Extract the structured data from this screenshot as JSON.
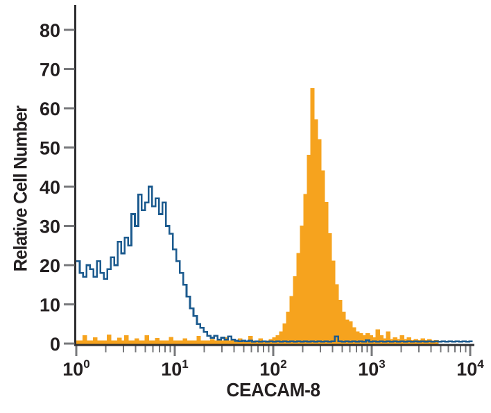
{
  "figure": {
    "background": "#ffffff"
  },
  "chart_data": {
    "type": "histogram",
    "subtype": "flow-cytometry-overlay-step-histogram",
    "title": "",
    "xlabel": "CEACAM-8",
    "ylabel": "Relative Cell Number",
    "x_scale": "log10",
    "xlim_exponents": [
      0,
      4
    ],
    "x_tick_exponents": [
      0,
      1,
      2,
      3,
      4
    ],
    "x_tick_base": "10",
    "x_minor_tick_multiples": [
      2,
      3,
      4,
      5,
      6,
      7,
      8,
      9
    ],
    "y_ticks": [
      0,
      10,
      20,
      30,
      40,
      50,
      60,
      70,
      80
    ],
    "ylim": [
      0,
      86
    ],
    "grid": false,
    "legend": "none",
    "axis_color": "#2e2e30",
    "tick_color": "#77787b",
    "label_color": "#231f20",
    "bins": {
      "log_start": 0,
      "log_step": 0.035,
      "count": 115
    },
    "series": [
      {
        "id": "filled-histogram-stained",
        "style": "filled",
        "color": "#F6A31E",
        "peak_value": 65,
        "peak_x_approx": 250,
        "values": [
          0.7,
          0.7,
          2,
          0.7,
          0.7,
          1.5,
          0.7,
          0.7,
          0.7,
          2.2,
          0.7,
          0.7,
          1.4,
          0.7,
          2,
          0.7,
          0.7,
          1.2,
          0.7,
          0.7,
          2,
          0.7,
          0.7,
          1.3,
          0.7,
          0.7,
          0.7,
          1.6,
          0.7,
          0.7,
          0.7,
          1.2,
          0.7,
          0.7,
          0.7,
          1.8,
          0.7,
          0.7,
          0.7,
          1,
          0.7,
          0.7,
          0.7,
          1.5,
          0.7,
          0.7,
          0.7,
          1.2,
          0.7,
          0.7,
          1.8,
          0.7,
          0.7,
          1.2,
          0.7,
          0.7,
          1,
          1.5,
          2,
          3,
          5,
          8,
          12,
          17,
          23,
          30,
          38,
          48,
          65,
          57,
          52,
          44,
          36,
          28,
          21,
          15,
          11,
          8,
          6,
          5.5,
          4,
          3,
          2.5,
          2,
          2.5,
          2,
          1.5,
          3.5,
          2,
          1.2,
          3,
          1,
          1.5,
          1,
          2,
          1,
          1.5,
          0.8,
          1,
          0.8,
          1.2,
          0.8,
          1,
          0.7,
          0.8,
          0,
          0,
          0,
          0,
          0,
          0,
          0,
          0,
          0,
          0
        ]
      },
      {
        "id": "open-histogram-control",
        "style": "outline",
        "color": "#1B5A8E",
        "peak_value": 40,
        "peak_x_approx": 5,
        "values": [
          21,
          18,
          17,
          20,
          19,
          17,
          21,
          18,
          16.5,
          19,
          22,
          20,
          26,
          23,
          27,
          25,
          33,
          30,
          38,
          34,
          36,
          40,
          35,
          37,
          33,
          36,
          30,
          28,
          24,
          21,
          18,
          15,
          12,
          9,
          7,
          5,
          4,
          3,
          2,
          1.5,
          2,
          1,
          1.5,
          1,
          1.8,
          1,
          0.7,
          0.6,
          0.7,
          0.6,
          0.7,
          0.5,
          0.6,
          0.5,
          0.6,
          0.5,
          0.6,
          0.5,
          0.6,
          0.5,
          0.6,
          0.5,
          0.6,
          0.5,
          0.6,
          0.5,
          0.6,
          0.5,
          0.6,
          0.5,
          0.6,
          0.5,
          0.6,
          0.5,
          0.6,
          1.8,
          0.6,
          0.5,
          0.6,
          0.5,
          0.6,
          0.5,
          0.6,
          0.5,
          0.8,
          0.5,
          0.6,
          0.5,
          0.6,
          0.5,
          0.6,
          0.5,
          0.6,
          0.5,
          0.6,
          0.5,
          0.6,
          0.5,
          0.6,
          0.5,
          0.6,
          0.5,
          0.6,
          0.5,
          0.6,
          0.5,
          0.6,
          0.5,
          0.6,
          0.5,
          0.6,
          0.5,
          0.6,
          0.5,
          0.6
        ]
      }
    ]
  }
}
